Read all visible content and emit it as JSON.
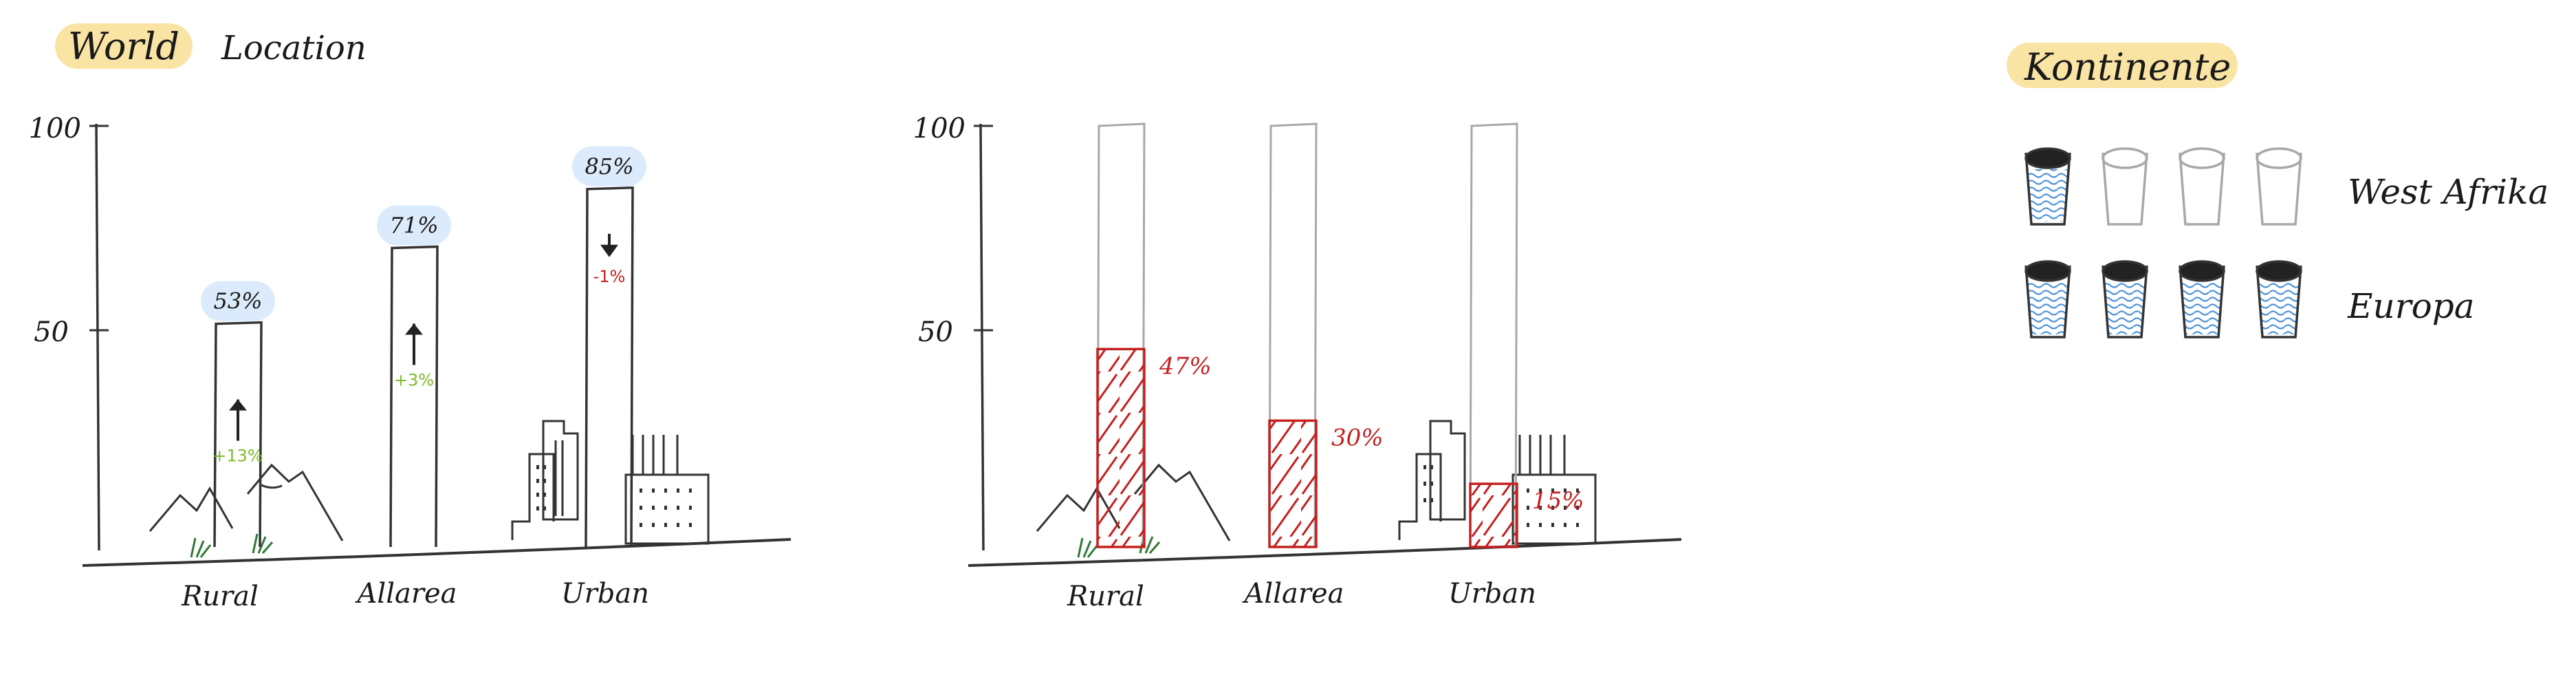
{
  "tabs": {
    "world": "World",
    "location": "Location",
    "active": "world"
  },
  "chart_data": [
    {
      "type": "bar",
      "categories": [
        "Rural",
        "Allarea",
        "Urban"
      ],
      "values": [
        53,
        71,
        85
      ],
      "value_labels": [
        "53%",
        "71%",
        "85%"
      ],
      "change_labels": [
        "+13%",
        "+3%",
        "-1%"
      ],
      "change_direction": [
        "up",
        "up",
        "down"
      ],
      "y_ticks": [
        "100",
        "50"
      ],
      "ylim": [
        0,
        100
      ],
      "colors": {
        "up": "#7dbb2a",
        "down": "#c42020",
        "bubble": "#dcebfb"
      }
    },
    {
      "type": "bar",
      "categories": [
        "Rural",
        "Allarea",
        "Urban"
      ],
      "values": [
        47,
        30,
        15
      ],
      "value_labels": [
        "47%",
        "30%",
        "15%"
      ],
      "y_ticks": [
        "100",
        "50"
      ],
      "ylim": [
        0,
        100
      ],
      "colors": {
        "fill": "#c42020",
        "outline": "#a8a8a8"
      }
    }
  ],
  "legend": {
    "title": "Kontinente",
    "rows": [
      {
        "label": "West Afrika",
        "filled": 1,
        "total": 4
      },
      {
        "label": "Europa",
        "filled": 4,
        "total": 4
      }
    ],
    "colors": {
      "water": "#4f95d8",
      "empty": "#a8a8a8",
      "title_bg": "#f9e4a4"
    }
  }
}
